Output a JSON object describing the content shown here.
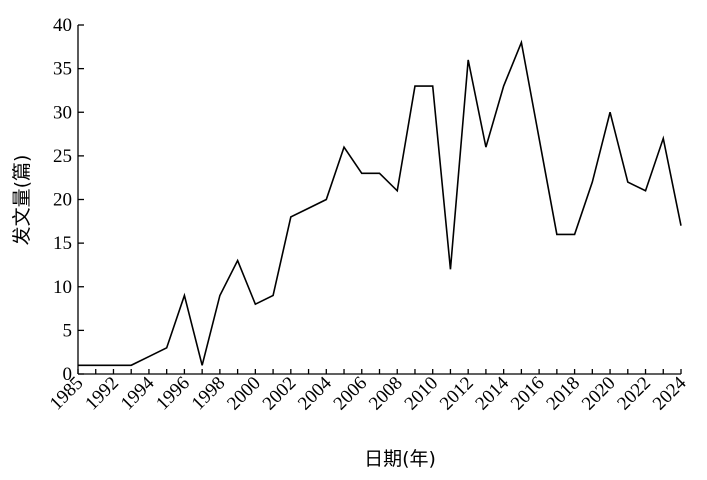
{
  "chart_data": {
    "type": "line",
    "x_label": "日期(年)",
    "y_label": "发文量(篇)",
    "categories": [
      "1985",
      null,
      "1992",
      null,
      "1994",
      null,
      "1996",
      null,
      "1998",
      null,
      "2000",
      null,
      "2002",
      null,
      "2004",
      null,
      "2006",
      null,
      "2008",
      null,
      "2010",
      null,
      "2012",
      null,
      "2014",
      null,
      "2016",
      null,
      "2018",
      null,
      "2020",
      null,
      "2022",
      null,
      "2024"
    ],
    "series": [
      {
        "color": "#000000",
        "values": [
          1,
          1,
          1,
          1,
          2,
          3,
          9,
          1,
          9,
          13,
          8,
          9,
          18,
          19,
          20,
          26,
          23,
          23,
          21,
          33,
          33,
          12,
          36,
          26,
          33,
          38,
          27,
          16,
          16,
          22,
          30,
          22,
          21,
          27,
          17
        ]
      }
    ],
    "ylim": [
      0,
      40
    ],
    "yticks": [
      0,
      5,
      10,
      15,
      20,
      25,
      30,
      35,
      40
    ]
  }
}
